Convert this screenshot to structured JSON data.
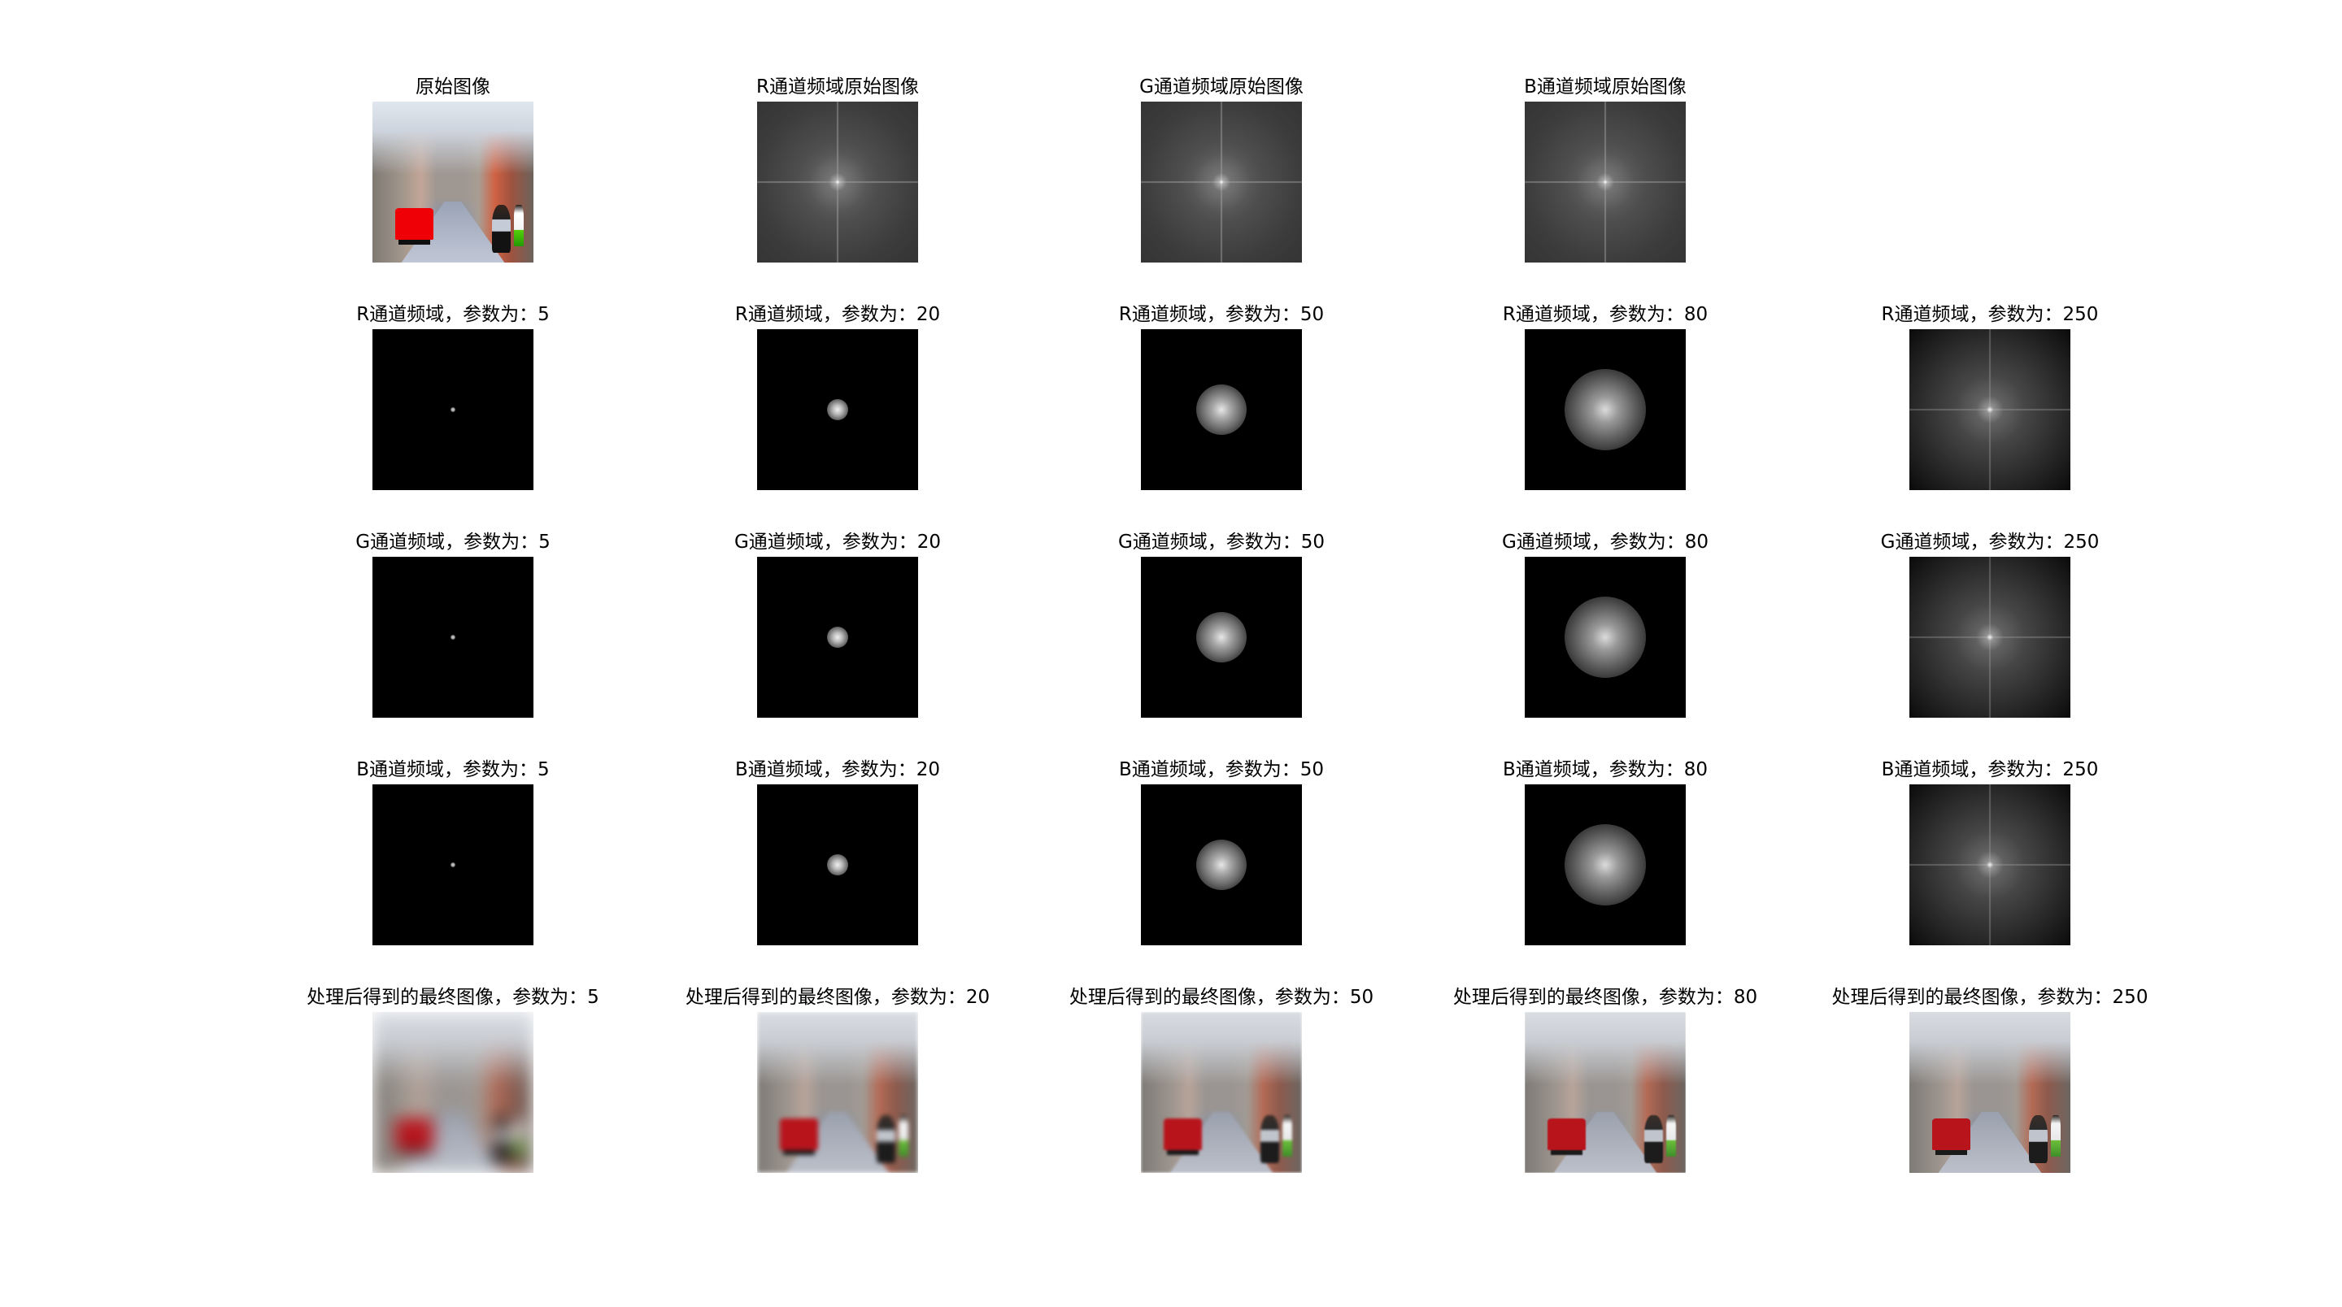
{
  "row1": {
    "original_title": "原始图像",
    "r_title": "R通道频域原始图像",
    "g_title": "G通道频域原始图像",
    "b_title": "B通道频域原始图像"
  },
  "row_r": [
    "R通道频域，参数为：5",
    "R通道频域，参数为：20",
    "R通道频域，参数为：50",
    "R通道频域，参数为：80",
    "R通道频域，参数为：250"
  ],
  "row_g": [
    "G通道频域，参数为：5",
    "G通道频域，参数为：20",
    "G通道频域，参数为：50",
    "G通道频域，参数为：80",
    "G通道频域，参数为：250"
  ],
  "row_b": [
    "B通道频域，参数为：5",
    "B通道频域，参数为：20",
    "B通道频域，参数为：50",
    "B通道频域，参数为：80",
    "B通道频域，参数为：250"
  ],
  "row_final": [
    "处理后得到的最终图像，参数为：5",
    "处理后得到的最终图像，参数为：20",
    "处理后得到的最终图像，参数为：50",
    "处理后得到的最终图像，参数为：80",
    "处理后得到的最终图像，参数为：250"
  ]
}
